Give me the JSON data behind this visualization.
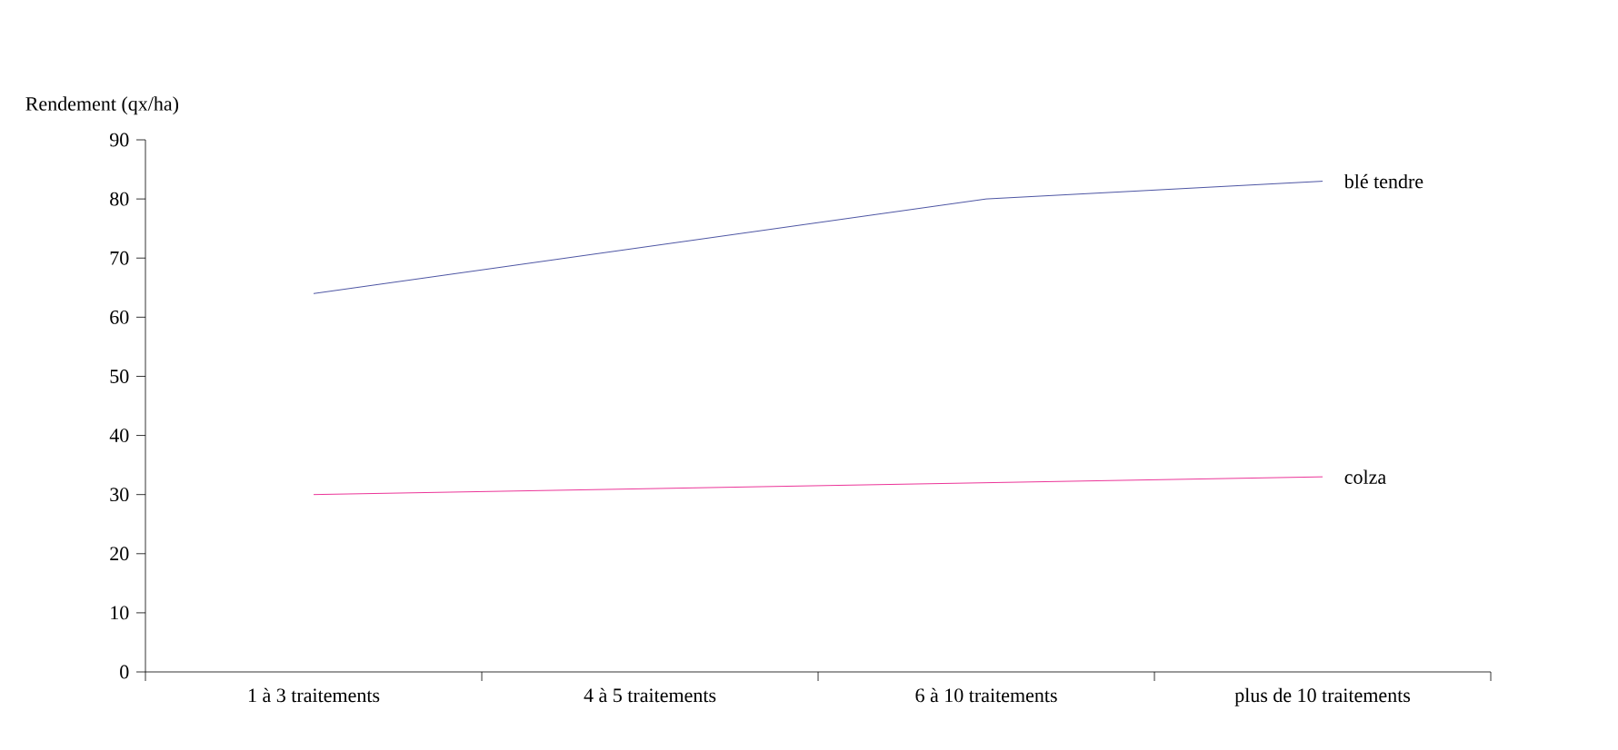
{
  "chart_data": {
    "type": "line",
    "ylabel": "Rendement (qx/ha)",
    "categories": [
      "1 à 3 traitements",
      "4 à 5 traitements",
      "6 à 10 traitements",
      "plus de 10 traitements"
    ],
    "series": [
      {
        "name": "blé tendre",
        "color": "#1f2a8c",
        "values": [
          64,
          72,
          80,
          83
        ]
      },
      {
        "name": "colza",
        "color": "#e6007e",
        "values": [
          30,
          31,
          32,
          33
        ]
      }
    ],
    "ylim": [
      0,
      90
    ],
    "yticks": [
      0,
      10,
      20,
      30,
      40,
      50,
      60,
      70,
      80,
      90
    ],
    "grid": false,
    "legend": false,
    "marker": "none",
    "line_style": "solid"
  }
}
